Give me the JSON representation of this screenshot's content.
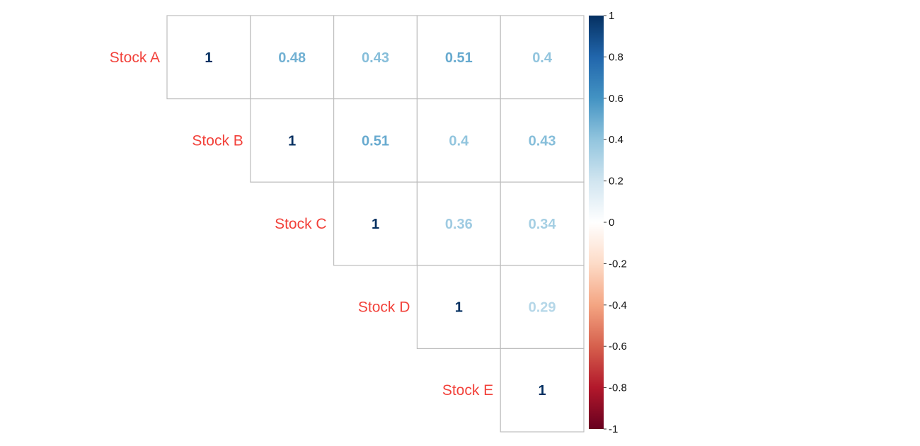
{
  "chart_data": {
    "type": "heatmap",
    "variant": "upper-triangle correlation matrix (numbers)",
    "variables": [
      "Stock A",
      "Stock B",
      "Stock C",
      "Stock D",
      "Stock E"
    ],
    "matrix": [
      [
        1,
        0.48,
        0.43,
        0.51,
        0.4
      ],
      [
        null,
        1,
        0.51,
        0.4,
        0.43
      ],
      [
        null,
        null,
        1,
        0.36,
        0.34
      ],
      [
        null,
        null,
        null,
        1,
        0.29
      ],
      [
        null,
        null,
        null,
        null,
        1
      ]
    ],
    "value_labels": [
      [
        "1",
        "0.48",
        "0.43",
        "0.51",
        "0.4"
      ],
      [
        null,
        "1",
        "0.51",
        "0.4",
        "0.43"
      ],
      [
        null,
        null,
        "1",
        "0.36",
        "0.34"
      ],
      [
        null,
        null,
        null,
        "1",
        "0.29"
      ],
      [
        null,
        null,
        null,
        null,
        "1"
      ]
    ],
    "label_color": "#f2413a",
    "color_scale": {
      "min": -1,
      "max": 1,
      "stops": [
        "#67001f",
        "#b2182b",
        "#d6604d",
        "#f4a582",
        "#fddbc7",
        "#ffffff",
        "#d1e5f0",
        "#92c5de",
        "#4393c3",
        "#2166ac",
        "#053061"
      ],
      "ticks": [
        "1",
        "0.8",
        "0.6",
        "0.4",
        "0.2",
        "0",
        "-0.2",
        "-0.4",
        "-0.6",
        "-0.8",
        "-1"
      ]
    }
  }
}
